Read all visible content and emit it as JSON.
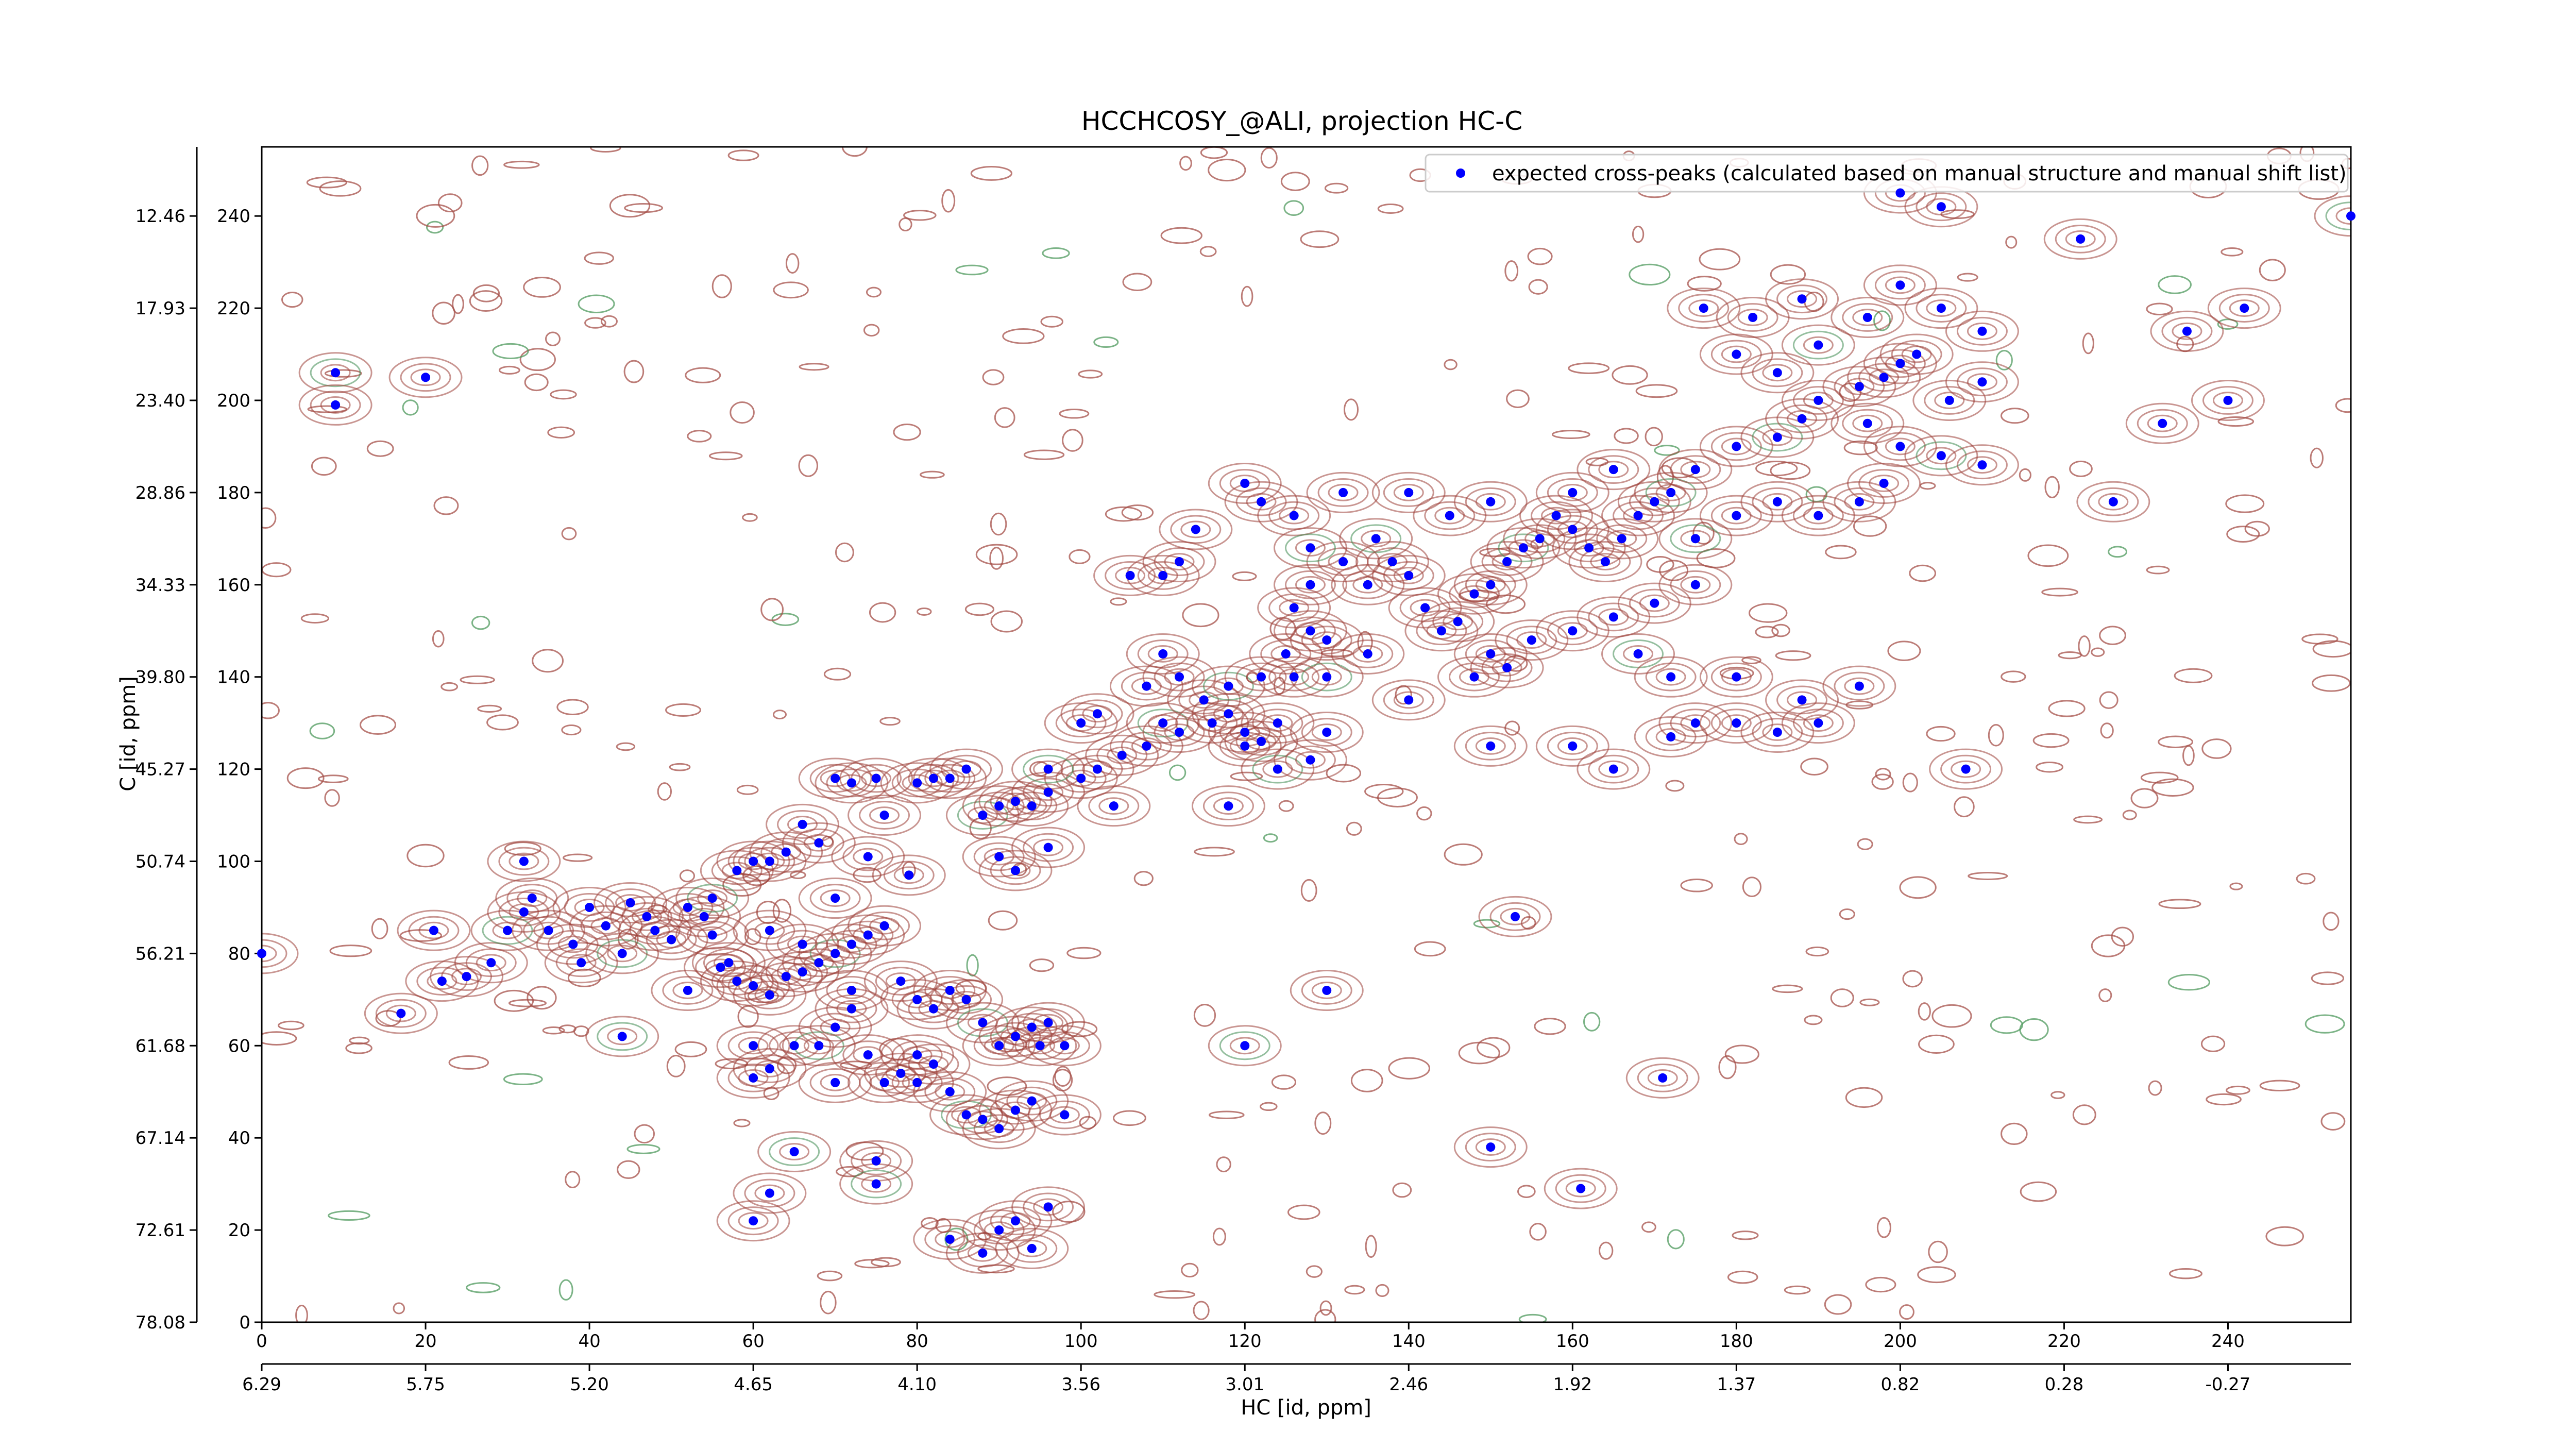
{
  "chart_data": {
    "type": "scatter",
    "title": "HCCHCOSY_@ALI, projection HC-C",
    "xlabel": "HC [id, ppm]",
    "ylabel": "C [id, ppm]",
    "xlim": [
      0,
      255
    ],
    "ylim": [
      0,
      255
    ],
    "xticks": [
      0,
      20,
      40,
      60,
      80,
      100,
      120,
      140,
      160,
      180,
      200,
      220,
      240
    ],
    "yticks": [
      0,
      20,
      40,
      60,
      80,
      100,
      120,
      140,
      160,
      180,
      200,
      220,
      240
    ],
    "x2ticks": [
      {
        "value": 0,
        "label": "6.29"
      },
      {
        "value": 20,
        "label": "5.75"
      },
      {
        "value": 40,
        "label": "5.20"
      },
      {
        "value": 60,
        "label": "4.65"
      },
      {
        "value": 80,
        "label": "4.10"
      },
      {
        "value": 100,
        "label": "3.56"
      },
      {
        "value": 120,
        "label": "3.01"
      },
      {
        "value": 140,
        "label": "2.46"
      },
      {
        "value": 160,
        "label": "1.92"
      },
      {
        "value": 180,
        "label": "1.37"
      },
      {
        "value": 200,
        "label": "0.82"
      },
      {
        "value": 220,
        "label": "0.28"
      },
      {
        "value": 240,
        "label": "-0.27"
      }
    ],
    "y2ticks": [
      {
        "value": 0,
        "label": "78.08"
      },
      {
        "value": 20,
        "label": "72.61"
      },
      {
        "value": 40,
        "label": "67.14"
      },
      {
        "value": 60,
        "label": "61.68"
      },
      {
        "value": 80,
        "label": "56.21"
      },
      {
        "value": 100,
        "label": "50.74"
      },
      {
        "value": 120,
        "label": "45.27"
      },
      {
        "value": 140,
        "label": "39.80"
      },
      {
        "value": 160,
        "label": "34.33"
      },
      {
        "value": 180,
        "label": "28.86"
      },
      {
        "value": 200,
        "label": "23.40"
      },
      {
        "value": 220,
        "label": "17.93"
      },
      {
        "value": 240,
        "label": "12.46"
      }
    ],
    "legend": "upper right",
    "series": [
      {
        "name": "expected cross-peaks (calculated based on manual structure and manual shift list)",
        "color": "#0000ff",
        "x": [
          9,
          9,
          20,
          0,
          21,
          22,
          17,
          25,
          28,
          30,
          32,
          33,
          32,
          35,
          38,
          39,
          40,
          42,
          44,
          45,
          47,
          48,
          50,
          52,
          54,
          55,
          57,
          44,
          52,
          56,
          58,
          60,
          62,
          64,
          66,
          68,
          70,
          72,
          74,
          76,
          78,
          80,
          82,
          84,
          86,
          88,
          90,
          92,
          94,
          96,
          98,
          60,
          62,
          65,
          68,
          70,
          72,
          74,
          76,
          78,
          80,
          82,
          84,
          86,
          88,
          90,
          92,
          94,
          98,
          60,
          70,
          75,
          65,
          62,
          84,
          88,
          90,
          92,
          94,
          96,
          60,
          75,
          80,
          72,
          70,
          72,
          76,
          80,
          82,
          84,
          88,
          90,
          92,
          94,
          96,
          100,
          102,
          105,
          108,
          110,
          112,
          90,
          92,
          96,
          68,
          64,
          66,
          58,
          55,
          60,
          62,
          112,
          115,
          118,
          120,
          122,
          124,
          118,
          122,
          125,
          128,
          130,
          126,
          128,
          132,
          135,
          136,
          138,
          140,
          142,
          144,
          146,
          148,
          150,
          152,
          154,
          156,
          158,
          160,
          162,
          164,
          166,
          168,
          170,
          172,
          148,
          150,
          152,
          155,
          160,
          165,
          170,
          175,
          168,
          172,
          175,
          180,
          185,
          190,
          160,
          165,
          150,
          130,
          135,
          114,
          112,
          110,
          106,
          120,
          122,
          126,
          128,
          132,
          140,
          145,
          150,
          160,
          165,
          175,
          180,
          185,
          188,
          190,
          195,
          198,
          200,
          202,
          196,
          200,
          205,
          210,
          206,
          210,
          185,
          190,
          195,
          198,
          180,
          175,
          200,
          205,
          210,
          196,
          188,
          182,
          176,
          180,
          190,
          185,
          200,
          205,
          222,
          235,
          232,
          240,
          242,
          255,
          226,
          208,
          180,
          172,
          188,
          195,
          140,
          120,
          124,
          128,
          116,
          130,
          126,
          110,
          108,
          100,
          102,
          96,
          118,
          104,
          86,
          75,
          74,
          70,
          66,
          79,
          120,
          130,
          153,
          171,
          150,
          161,
          95,
          62
        ],
        "values": [
          206,
          199,
          205,
          80,
          85,
          74,
          67,
          75,
          78,
          85,
          89,
          92,
          100,
          85,
          82,
          78,
          90,
          86,
          80,
          91,
          88,
          85,
          83,
          90,
          88,
          84,
          78,
          62,
          72,
          77,
          74,
          73,
          71,
          75,
          76,
          78,
          80,
          82,
          84,
          86,
          74,
          70,
          68,
          72,
          70,
          65,
          60,
          62,
          64,
          65,
          60,
          60,
          55,
          60,
          60,
          64,
          68,
          58,
          52,
          54,
          52,
          56,
          50,
          45,
          44,
          42,
          46,
          48,
          45,
          53,
          52,
          35,
          37,
          28,
          18,
          15,
          20,
          22,
          16,
          25,
          22,
          30,
          58,
          72,
          118,
          117,
          110,
          117,
          118,
          118,
          110,
          112,
          113,
          112,
          115,
          118,
          120,
          123,
          125,
          130,
          128,
          101,
          98,
          103,
          104,
          102,
          108,
          98,
          92,
          100,
          85,
          140,
          135,
          132,
          128,
          126,
          130,
          138,
          140,
          145,
          150,
          148,
          155,
          160,
          165,
          160,
          170,
          165,
          162,
          155,
          150,
          152,
          158,
          160,
          165,
          168,
          170,
          175,
          172,
          168,
          165,
          170,
          175,
          178,
          180,
          140,
          145,
          142,
          148,
          150,
          153,
          156,
          160,
          145,
          140,
          130,
          130,
          128,
          130,
          125,
          120,
          125,
          140,
          145,
          172,
          165,
          162,
          162,
          182,
          178,
          175,
          168,
          180,
          180,
          175,
          178,
          180,
          185,
          185,
          190,
          192,
          196,
          200,
          203,
          205,
          208,
          210,
          195,
          190,
          188,
          186,
          200,
          204,
          178,
          175,
          178,
          182,
          175,
          170,
          225,
          220,
          215,
          218,
          222,
          218,
          220,
          210,
          212,
          206,
          245,
          242,
          235,
          215,
          195,
          200,
          220,
          240,
          178,
          120,
          140,
          127,
          135,
          138,
          135,
          125,
          120,
          122,
          130,
          128,
          140,
          145,
          138,
          130,
          132,
          120,
          112,
          112,
          120,
          118,
          101,
          92,
          82,
          97,
          60,
          72,
          88,
          53,
          38,
          29,
          60,
          100
        ]
      }
    ]
  }
}
